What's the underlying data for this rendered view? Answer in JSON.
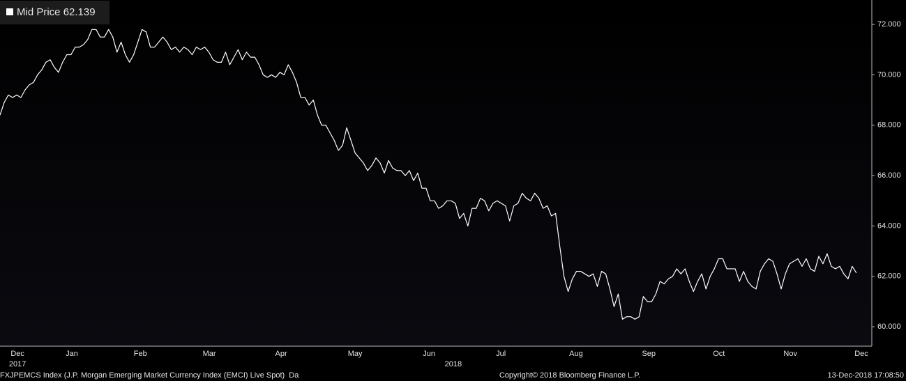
{
  "chart_data": {
    "type": "line",
    "series": [
      {
        "name": "Mid Price",
        "color": "#ffffff",
        "values": [
          68.4,
          68.9,
          69.2,
          69.1,
          69.2,
          69.1,
          69.4,
          69.6,
          69.7,
          70.0,
          70.2,
          70.5,
          70.6,
          70.3,
          70.1,
          70.5,
          70.8,
          70.8,
          71.1,
          71.1,
          71.2,
          71.4,
          71.8,
          71.8,
          71.5,
          71.5,
          71.8,
          71.5,
          70.9,
          71.3,
          70.8,
          70.5,
          70.8,
          71.3,
          71.8,
          71.7,
          71.1,
          71.1,
          71.3,
          71.5,
          71.3,
          71.0,
          71.1,
          70.9,
          71.1,
          71.0,
          70.8,
          71.1,
          71.0,
          71.1,
          70.9,
          70.6,
          70.5,
          70.5,
          70.9,
          70.4,
          70.7,
          71.0,
          70.6,
          70.9,
          70.7,
          70.7,
          70.4,
          70.0,
          69.9,
          70.0,
          69.9,
          70.1,
          70.0,
          70.4,
          70.1,
          69.7,
          69.1,
          69.1,
          68.8,
          69.0,
          68.4,
          68.0,
          68.0,
          67.7,
          67.4,
          67.0,
          67.2,
          67.9,
          67.4,
          66.9,
          66.7,
          66.5,
          66.2,
          66.4,
          66.7,
          66.5,
          66.1,
          66.6,
          66.3,
          66.2,
          66.2,
          66.0,
          66.2,
          65.8,
          66.1,
          65.5,
          65.5,
          65.0,
          65.0,
          64.7,
          64.8,
          65.0,
          65.0,
          64.9,
          64.3,
          64.5,
          64.0,
          64.7,
          64.7,
          65.1,
          65.0,
          64.6,
          64.9,
          65.0,
          64.9,
          64.8,
          64.2,
          64.8,
          64.9,
          65.3,
          65.1,
          65.0,
          65.3,
          65.1,
          64.7,
          64.8,
          64.4,
          64.5,
          63.2,
          62.0,
          61.4,
          61.9,
          62.2,
          62.2,
          62.1,
          62.0,
          62.1,
          61.6,
          62.2,
          62.1,
          61.5,
          60.8,
          61.3,
          60.3,
          60.4,
          60.4,
          60.3,
          60.4,
          61.2,
          61.0,
          61.0,
          61.3,
          61.8,
          61.7,
          61.9,
          62.0,
          62.3,
          62.1,
          62.3,
          61.8,
          61.4,
          61.8,
          62.1,
          61.5,
          62.0,
          62.3,
          62.7,
          62.7,
          62.3,
          62.3,
          62.3,
          61.8,
          62.2,
          61.8,
          61.6,
          61.5,
          62.2,
          62.5,
          62.7,
          62.6,
          62.1,
          61.5,
          62.1,
          62.5,
          62.6,
          62.7,
          62.4,
          62.7,
          62.3,
          62.2,
          62.8,
          62.5,
          62.9,
          62.4,
          62.3,
          62.4,
          62.1,
          61.9,
          62.4,
          62.139
        ]
      }
    ],
    "xlim": [
      0,
      208.7
    ],
    "xticks": [
      {
        "value": 4.2,
        "label": "Dec"
      },
      {
        "value": 17.2,
        "label": "Jan"
      },
      {
        "value": 33.6,
        "label": "Feb"
      },
      {
        "value": 50.1,
        "label": "Mar"
      },
      {
        "value": 67.3,
        "label": "Apr"
      },
      {
        "value": 85,
        "label": "May"
      },
      {
        "value": 102.7,
        "label": "Jun"
      },
      {
        "value": 119.9,
        "label": "Jul"
      },
      {
        "value": 137.9,
        "label": "Aug"
      },
      {
        "value": 155.3,
        "label": "Sep"
      },
      {
        "value": 172.1,
        "label": "Oct"
      },
      {
        "value": 189.2,
        "label": "Nov"
      },
      {
        "value": 206.2,
        "label": "Dec"
      }
    ],
    "year_labels": [
      {
        "value": 4.2,
        "label": "2017"
      },
      {
        "value": 108.5,
        "label": "2018"
      }
    ],
    "ylim": [
      59.23,
      72.97
    ],
    "yticks": [
      {
        "value": 60,
        "label": "60.000"
      },
      {
        "value": 62,
        "label": "62.000"
      },
      {
        "value": 64,
        "label": "64.000"
      },
      {
        "value": 66,
        "label": "66.000"
      },
      {
        "value": 68,
        "label": "68.000"
      },
      {
        "value": 70,
        "label": "70.000"
      },
      {
        "value": 72,
        "label": "72.000"
      }
    ],
    "footer": {
      "security": "FXJPEMCS Index (J.P. Morgan Emerging Market Currency Index (EMCI) Live Spot)  Da",
      "copyright": "Copyright© 2018 Bloomberg Finance L.P.",
      "timestamp": "13-Dec-2018 17:08:50"
    }
  }
}
